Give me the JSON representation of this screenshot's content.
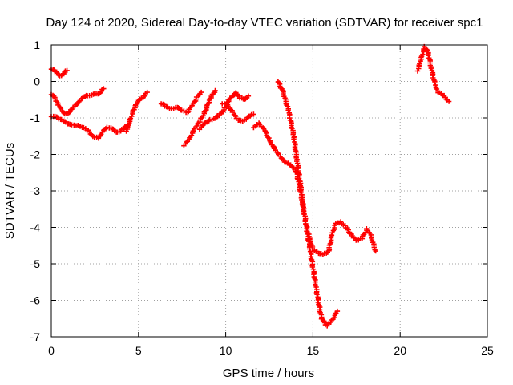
{
  "chart_data": {
    "type": "scatter",
    "title": "Day 124 of 2020, Sidereal Day-to-day VTEC variation (SDTVAR) for receiver spc1",
    "xlabel": "GPS time / hours",
    "ylabel": "SDTVAR / TECUs",
    "xlim": [
      0,
      25
    ],
    "ylim": [
      -7,
      1
    ],
    "xticks": [
      "0",
      "5",
      "10",
      "15",
      "20",
      "25"
    ],
    "yticks": [
      "1",
      "0",
      "-1",
      "-2",
      "-3",
      "-4",
      "-5",
      "-6",
      "-7"
    ],
    "grid": true,
    "marker": "plus",
    "series_color": "#ff0000",
    "series": [
      {
        "segments": [
          [
            [
              0.0,
              0.35
            ],
            [
              0.3,
              0.25
            ],
            [
              0.5,
              0.15
            ],
            [
              0.7,
              0.22
            ],
            [
              0.9,
              0.3
            ]
          ],
          [
            [
              0.0,
              -0.35
            ],
            [
              0.2,
              -0.45
            ],
            [
              0.4,
              -0.65
            ],
            [
              0.6,
              -0.8
            ],
            [
              0.8,
              -0.9
            ],
            [
              1.0,
              -0.85
            ],
            [
              1.2,
              -0.75
            ],
            [
              1.4,
              -0.65
            ],
            [
              1.6,
              -0.55
            ],
            [
              1.8,
              -0.45
            ],
            [
              2.0,
              -0.4
            ],
            [
              2.2,
              -0.38
            ],
            [
              2.4,
              -0.35
            ],
            [
              2.6,
              -0.35
            ],
            [
              2.8,
              -0.3
            ],
            [
              3.0,
              -0.2
            ]
          ],
          [
            [
              0.0,
              -0.95
            ],
            [
              0.3,
              -0.98
            ],
            [
              0.6,
              -1.05
            ],
            [
              0.9,
              -1.15
            ],
            [
              1.2,
              -1.2
            ],
            [
              1.5,
              -1.2
            ],
            [
              1.8,
              -1.25
            ],
            [
              2.1,
              -1.35
            ],
            [
              2.4,
              -1.5
            ],
            [
              2.7,
              -1.55
            ],
            [
              3.0,
              -1.35
            ],
            [
              3.2,
              -1.25
            ],
            [
              3.5,
              -1.3
            ],
            [
              3.8,
              -1.4
            ],
            [
              4.1,
              -1.3
            ],
            [
              4.4,
              -1.2
            ]
          ],
          [
            [
              4.3,
              -1.35
            ],
            [
              4.5,
              -1.1
            ],
            [
              4.7,
              -0.8
            ],
            [
              4.9,
              -0.6
            ],
            [
              5.1,
              -0.5
            ],
            [
              5.3,
              -0.4
            ],
            [
              5.5,
              -0.3
            ]
          ],
          [
            [
              6.3,
              -0.6
            ],
            [
              6.6,
              -0.7
            ],
            [
              6.9,
              -0.75
            ],
            [
              7.2,
              -0.7
            ],
            [
              7.5,
              -0.8
            ],
            [
              7.8,
              -0.85
            ],
            [
              8.1,
              -0.65
            ],
            [
              8.4,
              -0.4
            ],
            [
              8.6,
              -0.3
            ]
          ],
          [
            [
              7.6,
              -1.75
            ],
            [
              7.9,
              -1.6
            ],
            [
              8.2,
              -1.3
            ],
            [
              8.5,
              -1.1
            ],
            [
              8.8,
              -0.85
            ],
            [
              9.0,
              -0.6
            ],
            [
              9.2,
              -0.4
            ],
            [
              9.4,
              -0.25
            ]
          ],
          [
            [
              8.5,
              -1.3
            ],
            [
              8.8,
              -1.15
            ],
            [
              9.1,
              -1.05
            ],
            [
              9.4,
              -1.0
            ],
            [
              9.7,
              -0.9
            ],
            [
              10.0,
              -0.7
            ],
            [
              10.2,
              -0.5
            ],
            [
              10.4,
              -0.4
            ],
            [
              10.6,
              -0.3
            ],
            [
              10.8,
              -0.45
            ],
            [
              11.1,
              -0.5
            ],
            [
              11.3,
              -0.4
            ]
          ],
          [
            [
              9.8,
              -0.6
            ],
            [
              10.1,
              -0.65
            ],
            [
              10.4,
              -0.85
            ],
            [
              10.7,
              -1.05
            ],
            [
              11.0,
              -1.1
            ],
            [
              11.3,
              -0.95
            ],
            [
              11.6,
              -0.9
            ]
          ],
          [
            [
              11.6,
              -1.25
            ],
            [
              11.9,
              -1.15
            ],
            [
              12.2,
              -1.3
            ],
            [
              12.5,
              -1.6
            ],
            [
              12.8,
              -1.85
            ],
            [
              13.1,
              -2.05
            ],
            [
              13.4,
              -2.2
            ],
            [
              13.7,
              -2.3
            ],
            [
              14.0,
              -2.4
            ],
            [
              14.2,
              -2.8
            ],
            [
              14.4,
              -3.3
            ],
            [
              14.6,
              -3.9
            ],
            [
              14.8,
              -4.3
            ],
            [
              15.0,
              -4.6
            ],
            [
              15.3,
              -4.7
            ],
            [
              15.6,
              -4.75
            ],
            [
              15.9,
              -4.65
            ],
            [
              16.1,
              -4.2
            ],
            [
              16.3,
              -3.9
            ],
            [
              16.6,
              -3.85
            ],
            [
              16.9,
              -4.0
            ],
            [
              17.2,
              -4.2
            ],
            [
              17.5,
              -4.35
            ],
            [
              17.8,
              -4.3
            ],
            [
              18.1,
              -4.05
            ],
            [
              18.3,
              -4.2
            ],
            [
              18.6,
              -4.65
            ]
          ],
          [
            [
              13.0,
              0.0
            ],
            [
              13.3,
              -0.3
            ],
            [
              13.6,
              -0.8
            ],
            [
              13.9,
              -1.5
            ],
            [
              14.1,
              -2.2
            ],
            [
              14.3,
              -2.9
            ],
            [
              14.5,
              -3.6
            ],
            [
              14.7,
              -4.2
            ],
            [
              14.9,
              -4.8
            ],
            [
              15.1,
              -5.4
            ],
            [
              15.3,
              -6.0
            ],
            [
              15.5,
              -6.5
            ],
            [
              15.8,
              -6.7
            ],
            [
              16.1,
              -6.55
            ],
            [
              16.4,
              -6.3
            ]
          ],
          [
            [
              21.0,
              0.3
            ],
            [
              21.2,
              0.6
            ],
            [
              21.4,
              0.95
            ],
            [
              21.6,
              0.8
            ],
            [
              21.8,
              0.35
            ],
            [
              22.0,
              -0.1
            ],
            [
              22.2,
              -0.3
            ],
            [
              22.5,
              -0.4
            ],
            [
              22.8,
              -0.55
            ]
          ]
        ]
      }
    ]
  }
}
